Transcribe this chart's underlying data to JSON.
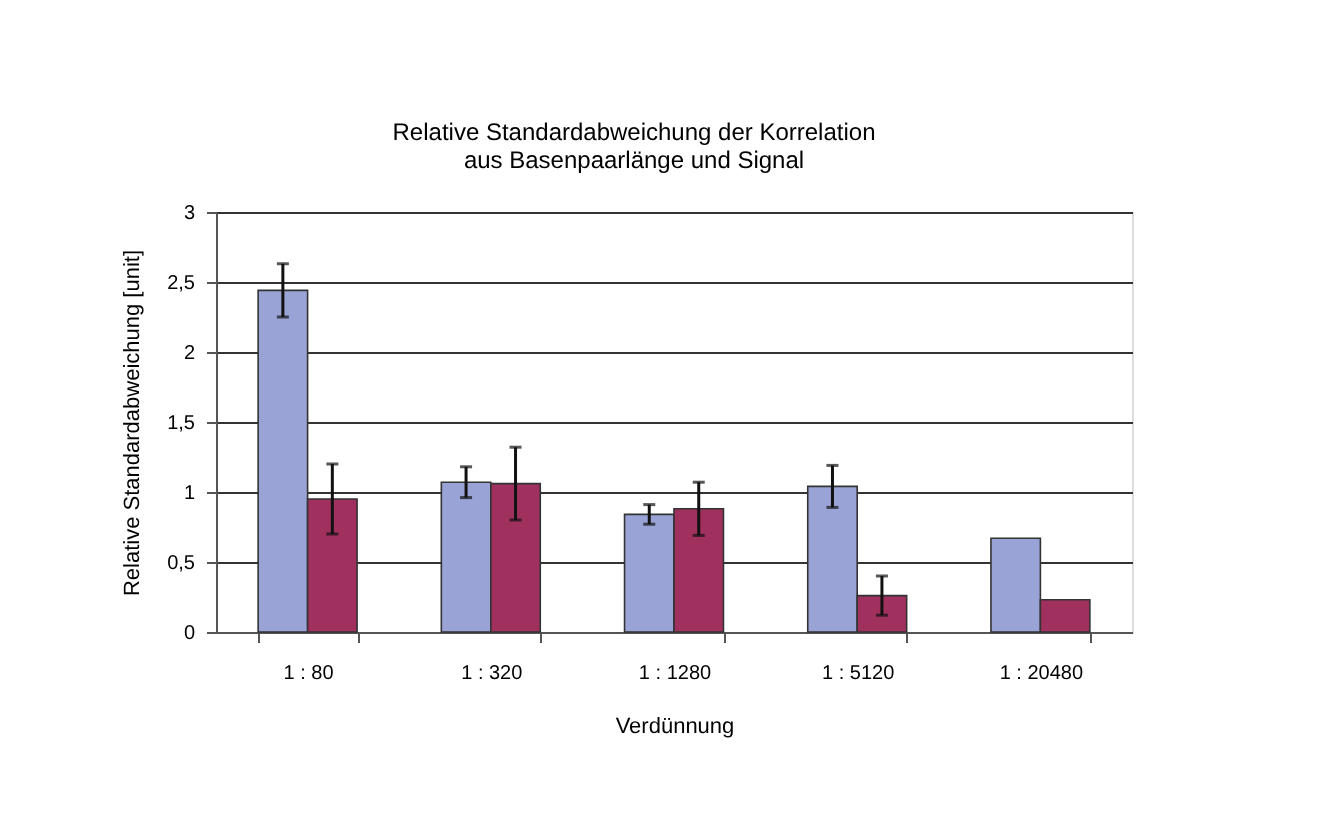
{
  "chart_data": {
    "type": "bar",
    "title": [
      "Relative Standardabweichung der Korrelation",
      "aus Basenpaarlänge und Signal"
    ],
    "xlabel": "Verdünnung",
    "ylabel": "Relative Standardabweichung [unit]",
    "categories": [
      "1 : 80",
      "1 : 320",
      "1 : 1280",
      "1 : 5120",
      "1 : 20480"
    ],
    "series": [
      {
        "color": "#9aa3d6",
        "values": [
          2.44,
          1.07,
          0.84,
          1.04,
          0.67
        ],
        "errors": [
          0.19,
          0.11,
          0.07,
          0.15,
          null
        ]
      },
      {
        "color": "#a0305e",
        "values": [
          0.95,
          1.06,
          0.88,
          0.26,
          0.23
        ],
        "errors": [
          0.25,
          0.26,
          0.19,
          0.14,
          null
        ]
      }
    ],
    "ylim": [
      0,
      3
    ],
    "yticks": [
      0,
      {
        "value": 0.5,
        "label": "0,5"
      },
      1,
      {
        "value": 1.5,
        "label": "1,5"
      },
      2,
      {
        "value": 2.5,
        "label": "2,5"
      },
      3
    ],
    "grid": "y",
    "legend": false
  }
}
